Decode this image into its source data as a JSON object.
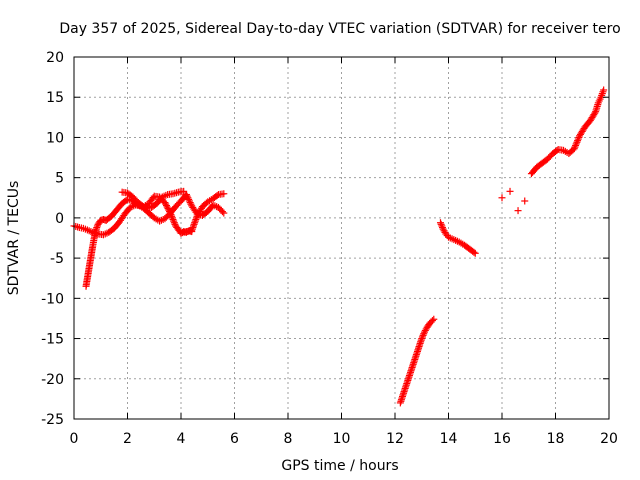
{
  "chart_data": {
    "type": "scatter",
    "title": "Day 357 of 2025, Sidereal Day-to-day VTEC variation (SDTVAR) for receiver tero",
    "xlabel": "GPS time / hours",
    "ylabel": "SDTVAR / TECUs",
    "xlim": [
      0,
      20
    ],
    "ylim": [
      -25,
      20
    ],
    "x_ticks": [
      "0",
      "2",
      "4",
      "6",
      "8",
      "10",
      "12",
      "14",
      "16",
      "18",
      "20"
    ],
    "y_ticks": [
      "-25",
      "-20",
      "-15",
      "-10",
      "-5",
      "0",
      "5",
      "10",
      "15",
      "20"
    ],
    "grid": true,
    "marker": "plus",
    "color": "#ff0000",
    "series": [
      {
        "name": "tero",
        "tracks": [
          {
            "x": [
              0.0,
              0.2,
              0.35,
              0.5,
              0.7,
              0.9,
              1.1,
              1.3,
              1.5,
              1.7,
              1.9,
              2.1,
              2.3,
              2.5,
              2.7,
              2.9,
              3.1,
              3.3,
              3.5,
              3.7,
              3.9,
              4.1
            ],
            "y": [
              -1.0,
              -1.2,
              -1.3,
              -1.5,
              -1.8,
              -2.0,
              -2.1,
              -1.8,
              -1.3,
              -0.5,
              0.5,
              1.3,
              1.6,
              1.5,
              1.2,
              1.3,
              1.8,
              2.6,
              2.9,
              3.0,
              3.2,
              3.3
            ]
          },
          {
            "x": [
              0.45,
              0.5,
              0.55,
              0.6,
              0.65,
              0.7,
              0.75,
              0.8,
              0.85,
              0.9,
              1.0,
              1.1,
              1.2
            ],
            "y": [
              -8.5,
              -7.5,
              -6.5,
              -5.5,
              -4.5,
              -3.5,
              -2.6,
              -1.8,
              -1.2,
              -0.8,
              -0.3,
              -0.2,
              -0.3
            ]
          },
          {
            "x": [
              1.2,
              1.4,
              1.6,
              1.8,
              2.0,
              2.2,
              2.4,
              2.6,
              2.8,
              3.0,
              3.2,
              3.4,
              3.6,
              3.8,
              4.0,
              4.2
            ],
            "y": [
              -0.3,
              0.2,
              1.0,
              1.8,
              2.3,
              2.1,
              1.6,
              1.2,
              0.6,
              0.0,
              -0.4,
              -0.1,
              0.6,
              1.4,
              2.1,
              2.9
            ]
          },
          {
            "x": [
              1.8,
              2.0,
              2.2,
              2.4,
              2.6,
              2.8,
              3.0,
              3.2,
              3.4,
              3.6,
              3.8,
              4.0,
              4.2,
              4.4,
              4.6,
              4.8,
              5.0,
              5.2,
              5.4,
              5.6
            ],
            "y": [
              3.2,
              3.1,
              2.6,
              1.9,
              1.4,
              1.8,
              2.7,
              2.6,
              1.9,
              0.6,
              -1.0,
              -1.9,
              -1.7,
              -1.6,
              0.2,
              1.4,
              2.0,
              2.4,
              2.9,
              3.0
            ]
          },
          {
            "x": [
              4.2,
              4.4,
              4.6,
              4.8,
              5.0,
              5.2,
              5.4,
              5.6
            ],
            "y": [
              2.9,
              1.5,
              0.5,
              0.3,
              0.8,
              1.6,
              1.3,
              0.6
            ]
          },
          {
            "x": [
              4.0,
              4.1,
              4.2,
              4.3,
              4.4
            ],
            "y": [
              -1.9,
              -1.7,
              -1.8,
              -1.6,
              -1.7
            ]
          },
          {
            "x": [
              12.2,
              12.3,
              12.4,
              12.5,
              12.6,
              12.7,
              12.8,
              12.9,
              13.0,
              13.1,
              13.2,
              13.3,
              13.45
            ],
            "y": [
              -23.0,
              -22.0,
              -21.0,
              -20.0,
              -19.0,
              -18.0,
              -17.0,
              -16.0,
              -15.0,
              -14.2,
              -13.6,
              -13.1,
              -12.6
            ]
          },
          {
            "x": [
              13.7,
              13.8,
              13.9,
              14.0,
              14.2,
              14.4,
              14.6,
              14.8,
              15.0
            ],
            "y": [
              -0.6,
              -1.4,
              -2.0,
              -2.4,
              -2.7,
              -3.0,
              -3.4,
              -3.9,
              -4.4
            ]
          },
          {
            "x": [
              16.0,
              16.3,
              16.6,
              16.85
            ],
            "y": [
              2.5,
              3.3,
              0.9,
              2.1
            ]
          },
          {
            "x": [
              17.1,
              17.3,
              17.5,
              17.7,
              17.9,
              18.1,
              18.3,
              18.5,
              18.7,
              18.9,
              19.1,
              19.3,
              19.5,
              19.6,
              19.7,
              19.8
            ],
            "y": [
              5.5,
              6.3,
              6.8,
              7.3,
              8.0,
              8.5,
              8.4,
              8.0,
              8.6,
              10.2,
              11.3,
              12.1,
              13.2,
              14.3,
              15.0,
              15.9
            ]
          }
        ]
      }
    ]
  }
}
